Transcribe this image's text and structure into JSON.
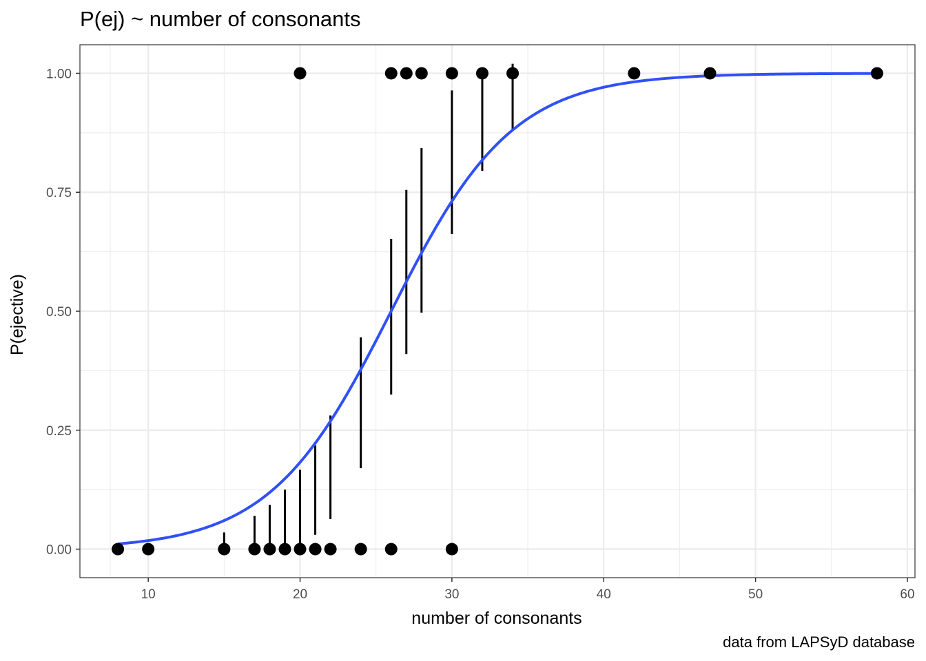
{
  "chart_data": {
    "type": "scatter",
    "title": "P(ej) ~ number of consonants",
    "xlabel": "number of consonants",
    "ylabel": "P(ejective)",
    "caption": "data from LAPSyD database",
    "xlim": [
      5.5,
      60.5
    ],
    "ylim": [
      -0.06,
      1.06
    ],
    "x_ticks": [
      10,
      20,
      30,
      40,
      50,
      60
    ],
    "x_tick_labels": [
      "10",
      "20",
      "30",
      "40",
      "50",
      "60"
    ],
    "y_ticks": [
      0,
      0.25,
      0.5,
      0.75,
      1
    ],
    "y_tick_labels": [
      "0.00",
      "0.25",
      "0.50",
      "0.75",
      "1.00"
    ],
    "grid": true,
    "points": [
      {
        "x": 8,
        "y": 0
      },
      {
        "x": 10,
        "y": 0
      },
      {
        "x": 15,
        "y": 0
      },
      {
        "x": 17,
        "y": 0
      },
      {
        "x": 18,
        "y": 0
      },
      {
        "x": 19,
        "y": 0
      },
      {
        "x": 20,
        "y": 0
      },
      {
        "x": 21,
        "y": 0
      },
      {
        "x": 22,
        "y": 0
      },
      {
        "x": 24,
        "y": 0
      },
      {
        "x": 26,
        "y": 0
      },
      {
        "x": 30,
        "y": 0
      },
      {
        "x": 20,
        "y": 1
      },
      {
        "x": 26,
        "y": 1
      },
      {
        "x": 27,
        "y": 1
      },
      {
        "x": 28,
        "y": 1
      },
      {
        "x": 30,
        "y": 1
      },
      {
        "x": 32,
        "y": 1
      },
      {
        "x": 34,
        "y": 1
      },
      {
        "x": 42,
        "y": 1
      },
      {
        "x": 47,
        "y": 1
      },
      {
        "x": 58,
        "y": 1
      }
    ],
    "error_bars": [
      {
        "x": 15,
        "low": 0.0,
        "high": 0.035
      },
      {
        "x": 17,
        "low": 0.0,
        "high": 0.07
      },
      {
        "x": 18,
        "low": 0.0,
        "high": 0.093
      },
      {
        "x": 19,
        "low": 0.0,
        "high": 0.125
      },
      {
        "x": 20,
        "low": 0.0,
        "high": 0.167
      },
      {
        "x": 21,
        "low": 0.03,
        "high": 0.218
      },
      {
        "x": 22,
        "low": 0.063,
        "high": 0.281
      },
      {
        "x": 24,
        "low": 0.17,
        "high": 0.445
      },
      {
        "x": 26,
        "low": 0.325,
        "high": 0.652
      },
      {
        "x": 27,
        "low": 0.41,
        "high": 0.755
      },
      {
        "x": 28,
        "low": 0.497,
        "high": 0.843
      },
      {
        "x": 30,
        "low": 0.662,
        "high": 0.964
      },
      {
        "x": 32,
        "low": 0.795,
        "high": 1.0
      },
      {
        "x": 34,
        "low": 0.883,
        "high": 1.02
      }
    ],
    "fit": {
      "type": "logistic",
      "intercept": -6.5,
      "slope": 0.25,
      "x_range": [
        8,
        58
      ],
      "color": "#3050f8"
    },
    "point_color": "#000000",
    "panel_border_color": "#333333",
    "grid_color": "#ebebeb"
  }
}
